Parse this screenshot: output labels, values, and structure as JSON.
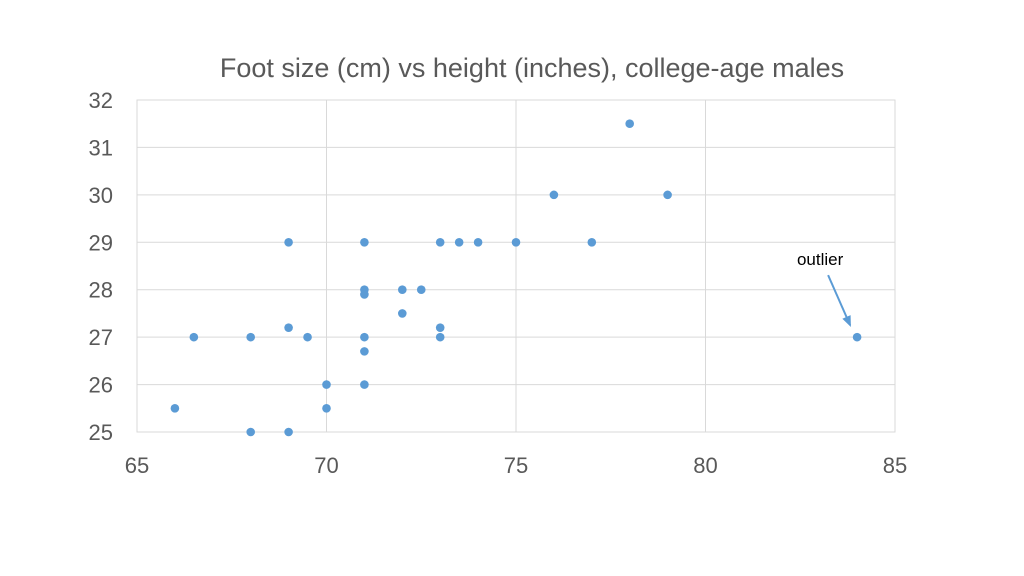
{
  "chart_data": {
    "type": "scatter",
    "title": "Foot size (cm) vs height (inches), college-age males",
    "xlabel": "",
    "ylabel": "",
    "xlim": [
      65,
      85
    ],
    "ylim": [
      25,
      32
    ],
    "x_ticks": [
      65,
      70,
      75,
      80,
      85
    ],
    "y_ticks": [
      25,
      26,
      27,
      28,
      29,
      30,
      31,
      32
    ],
    "grid": true,
    "legend": "none",
    "marker_color": "#5b9bd5",
    "points": [
      {
        "x": 66,
        "y": 25.5
      },
      {
        "x": 66.5,
        "y": 27
      },
      {
        "x": 68,
        "y": 27
      },
      {
        "x": 68,
        "y": 25
      },
      {
        "x": 69,
        "y": 29
      },
      {
        "x": 69,
        "y": 27.2
      },
      {
        "x": 69,
        "y": 25
      },
      {
        "x": 69.5,
        "y": 27
      },
      {
        "x": 70,
        "y": 26
      },
      {
        "x": 70,
        "y": 25.5
      },
      {
        "x": 71,
        "y": 29
      },
      {
        "x": 71,
        "y": 28
      },
      {
        "x": 71,
        "y": 27.9
      },
      {
        "x": 71,
        "y": 27
      },
      {
        "x": 71,
        "y": 26.7
      },
      {
        "x": 71,
        "y": 26
      },
      {
        "x": 72,
        "y": 28
      },
      {
        "x": 72,
        "y": 27.5
      },
      {
        "x": 72.5,
        "y": 28
      },
      {
        "x": 73,
        "y": 29
      },
      {
        "x": 73,
        "y": 27.2
      },
      {
        "x": 73,
        "y": 27
      },
      {
        "x": 73.5,
        "y": 29
      },
      {
        "x": 74,
        "y": 29
      },
      {
        "x": 75,
        "y": 29
      },
      {
        "x": 76,
        "y": 30
      },
      {
        "x": 77,
        "y": 29
      },
      {
        "x": 78,
        "y": 31.5
      },
      {
        "x": 79,
        "y": 30
      },
      {
        "x": 84,
        "y": 27
      }
    ],
    "annotations": [
      {
        "text": "outlier",
        "target": {
          "x": 84,
          "y": 27
        },
        "arrow_color": "#5b9bd5"
      }
    ]
  }
}
